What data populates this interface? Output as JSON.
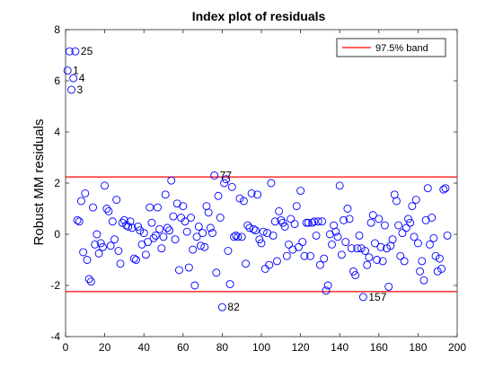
{
  "chart_data": {
    "type": "scatter",
    "title": "Index plot of residuals",
    "xlabel": "",
    "ylabel": "Robust MM residuals",
    "xlim": [
      0,
      200
    ],
    "ylim": [
      -4,
      8
    ],
    "xticks": [
      0,
      20,
      40,
      60,
      80,
      100,
      120,
      140,
      160,
      180,
      200
    ],
    "yticks": [
      -4,
      -2,
      0,
      2,
      4,
      6,
      8
    ],
    "grid": false,
    "legend": {
      "position": "top-right",
      "entries": [
        "97.5% band"
      ]
    },
    "band": {
      "name": "97.5% band",
      "upper": 2.24,
      "lower": -2.24,
      "color": "#ff0000"
    },
    "marker_color": "#0000ff",
    "points": [
      [
        1,
        6.4
      ],
      [
        2,
        7.15
      ],
      [
        3,
        5.65
      ],
      [
        4,
        6.1
      ],
      [
        5,
        7.15
      ],
      [
        6,
        0.55
      ],
      [
        7,
        0.5
      ],
      [
        8,
        1.3
      ],
      [
        9,
        -0.7
      ],
      [
        10,
        1.6
      ],
      [
        11,
        -1.0
      ],
      [
        12,
        -1.75
      ],
      [
        13,
        -1.85
      ],
      [
        14,
        1.05
      ],
      [
        15,
        -0.4
      ],
      [
        16,
        0.0
      ],
      [
        17,
        -0.75
      ],
      [
        18,
        -0.35
      ],
      [
        19,
        -0.5
      ],
      [
        20,
        1.9
      ],
      [
        21,
        1.0
      ],
      [
        22,
        0.9
      ],
      [
        23,
        -0.45
      ],
      [
        24,
        0.5
      ],
      [
        25,
        -0.2
      ],
      [
        26,
        1.35
      ],
      [
        27,
        -0.65
      ],
      [
        28,
        -1.15
      ],
      [
        29,
        0.45
      ],
      [
        30,
        0.55
      ],
      [
        31,
        0.35
      ],
      [
        32,
        0.3
      ],
      [
        33,
        0.5
      ],
      [
        34,
        0.25
      ],
      [
        35,
        -0.95
      ],
      [
        36,
        -1.0
      ],
      [
        37,
        0.3
      ],
      [
        38,
        0.15
      ],
      [
        39,
        -0.4
      ],
      [
        40,
        0.05
      ],
      [
        41,
        -0.8
      ],
      [
        42,
        -0.3
      ],
      [
        43,
        1.05
      ],
      [
        44,
        0.45
      ],
      [
        45,
        -0.15
      ],
      [
        46,
        -0.05
      ],
      [
        47,
        1.05
      ],
      [
        48,
        0.2
      ],
      [
        49,
        -0.55
      ],
      [
        50,
        -0.1
      ],
      [
        51,
        1.55
      ],
      [
        52,
        0.25
      ],
      [
        53,
        0.15
      ],
      [
        54,
        2.1
      ],
      [
        55,
        0.7
      ],
      [
        56,
        -0.2
      ],
      [
        57,
        1.2
      ],
      [
        58,
        -1.4
      ],
      [
        59,
        0.65
      ],
      [
        60,
        1.1
      ],
      [
        61,
        0.5
      ],
      [
        62,
        0.1
      ],
      [
        63,
        -1.3
      ],
      [
        64,
        0.65
      ],
      [
        65,
        -0.6
      ],
      [
        66,
        -2.0
      ],
      [
        67,
        -0.1
      ],
      [
        68,
        0.3
      ],
      [
        69,
        -0.45
      ],
      [
        70,
        0.05
      ],
      [
        71,
        -0.5
      ],
      [
        72,
        1.1
      ],
      [
        73,
        0.85
      ],
      [
        74,
        0.25
      ],
      [
        75,
        0.05
      ],
      [
        76,
        2.3
      ],
      [
        77,
        -1.5
      ],
      [
        78,
        1.5
      ],
      [
        79,
        0.65
      ],
      [
        80,
        -2.85
      ],
      [
        81,
        2.0
      ],
      [
        82,
        2.15
      ],
      [
        83,
        -0.65
      ],
      [
        84,
        -1.95
      ],
      [
        85,
        1.85
      ],
      [
        86,
        -0.1
      ],
      [
        87,
        -0.05
      ],
      [
        88,
        -0.1
      ],
      [
        89,
        1.4
      ],
      [
        90,
        -0.1
      ],
      [
        91,
        1.3
      ],
      [
        92,
        -1.15
      ],
      [
        93,
        0.35
      ],
      [
        94,
        0.25
      ],
      [
        95,
        1.6
      ],
      [
        96,
        0.2
      ],
      [
        97,
        0.15
      ],
      [
        98,
        1.55
      ],
      [
        99,
        -0.2
      ],
      [
        100,
        -0.35
      ],
      [
        101,
        0.1
      ],
      [
        102,
        -1.35
      ],
      [
        103,
        0.05
      ],
      [
        104,
        -1.2
      ],
      [
        105,
        2.0
      ],
      [
        106,
        -0.05
      ],
      [
        107,
        0.5
      ],
      [
        108,
        -1.05
      ],
      [
        109,
        0.9
      ],
      [
        110,
        0.55
      ],
      [
        111,
        0.45
      ],
      [
        112,
        0.3
      ],
      [
        113,
        -0.85
      ],
      [
        114,
        -0.4
      ],
      [
        115,
        0.6
      ],
      [
        116,
        -0.6
      ],
      [
        117,
        0.4
      ],
      [
        118,
        1.1
      ],
      [
        119,
        -0.5
      ],
      [
        120,
        1.7
      ],
      [
        121,
        -0.3
      ],
      [
        122,
        -0.85
      ],
      [
        123,
        0.45
      ],
      [
        124,
        0.45
      ],
      [
        125,
        -0.85
      ],
      [
        126,
        0.45
      ],
      [
        127,
        0.5
      ],
      [
        128,
        -0.05
      ],
      [
        129,
        0.5
      ],
      [
        130,
        -1.2
      ],
      [
        131,
        0.5
      ],
      [
        132,
        -0.95
      ],
      [
        133,
        -2.2
      ],
      [
        134,
        -2.0
      ],
      [
        135,
        0.0
      ],
      [
        136,
        -0.4
      ],
      [
        137,
        0.35
      ],
      [
        138,
        0.1
      ],
      [
        139,
        -0.1
      ],
      [
        140,
        1.9
      ],
      [
        141,
        -0.8
      ],
      [
        142,
        0.55
      ],
      [
        143,
        -0.3
      ],
      [
        144,
        1.0
      ],
      [
        145,
        0.6
      ],
      [
        146,
        -0.55
      ],
      [
        147,
        -1.45
      ],
      [
        148,
        -1.6
      ],
      [
        149,
        -0.55
      ],
      [
        150,
        -0.05
      ],
      [
        151,
        -0.55
      ],
      [
        152,
        -2.45
      ],
      [
        153,
        -0.65
      ],
      [
        154,
        -1.2
      ],
      [
        155,
        -0.9
      ],
      [
        156,
        0.45
      ],
      [
        157,
        0.75
      ],
      [
        158,
        -0.35
      ],
      [
        159,
        -1.0
      ],
      [
        160,
        0.6
      ],
      [
        161,
        -0.5
      ],
      [
        162,
        -1.05
      ],
      [
        163,
        0.35
      ],
      [
        164,
        -0.55
      ],
      [
        165,
        -2.05
      ],
      [
        166,
        -0.45
      ],
      [
        167,
        -0.2
      ],
      [
        168,
        1.55
      ],
      [
        169,
        1.3
      ],
      [
        170,
        0.35
      ],
      [
        171,
        -0.85
      ],
      [
        172,
        0.05
      ],
      [
        173,
        -1.05
      ],
      [
        174,
        0.25
      ],
      [
        175,
        0.6
      ],
      [
        176,
        0.45
      ],
      [
        177,
        1.1
      ],
      [
        178,
        -0.1
      ],
      [
        179,
        1.35
      ],
      [
        180,
        -0.35
      ],
      [
        181,
        -1.45
      ],
      [
        182,
        -1.05
      ],
      [
        183,
        -1.8
      ],
      [
        184,
        0.55
      ],
      [
        185,
        1.8
      ],
      [
        186,
        -0.4
      ],
      [
        187,
        0.65
      ],
      [
        188,
        -0.15
      ],
      [
        189,
        -0.85
      ],
      [
        190,
        -1.45
      ],
      [
        191,
        -0.95
      ],
      [
        192,
        -1.35
      ],
      [
        193,
        1.75
      ],
      [
        194,
        1.8
      ],
      [
        195,
        -0.05
      ]
    ],
    "annotations": [
      {
        "label": "25",
        "x": 5,
        "y": 7.15
      },
      {
        "label": "1",
        "x": 1,
        "y": 6.4
      },
      {
        "label": "4",
        "x": 4,
        "y": 6.1
      },
      {
        "label": "3",
        "x": 3,
        "y": 5.65
      },
      {
        "label": "77",
        "x": 76,
        "y": 2.3
      },
      {
        "label": "82",
        "x": 80,
        "y": -2.85
      },
      {
        "label": "157",
        "x": 152,
        "y": -2.45
      }
    ]
  }
}
